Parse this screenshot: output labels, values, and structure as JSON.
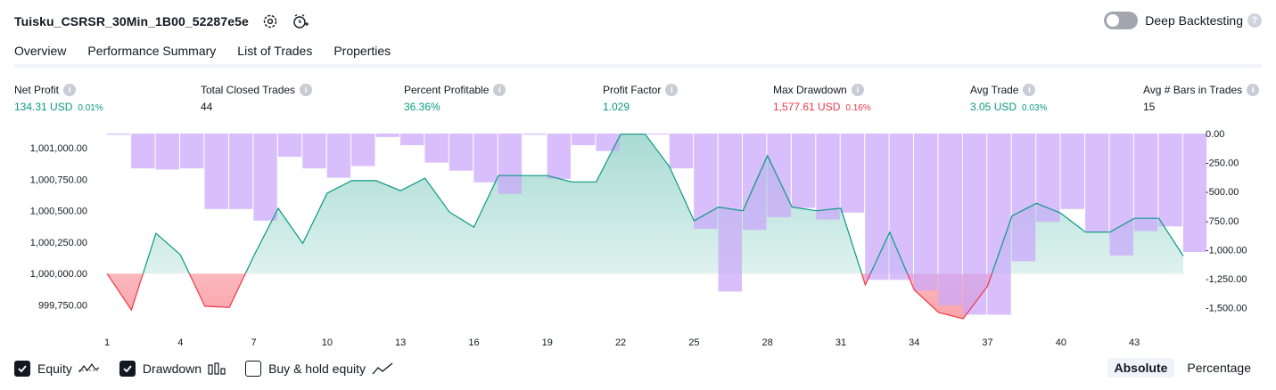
{
  "header": {
    "title": "Tuisku_CSRSR_30Min_1B00_52287e5e",
    "deep_backtesting_label": "Deep Backtesting",
    "help_glyph": "?"
  },
  "tabs": [
    {
      "label": "Overview",
      "active": true
    },
    {
      "label": "Performance Summary",
      "active": false
    },
    {
      "label": "List of Trades",
      "active": false
    },
    {
      "label": "Properties",
      "active": false
    }
  ],
  "metrics": [
    {
      "label": "Net Profit",
      "value": "134.31 USD",
      "pct": "0.01%",
      "color": "green"
    },
    {
      "label": "Total Closed Trades",
      "value": "44",
      "pct": "",
      "color": "dark"
    },
    {
      "label": "Percent Profitable",
      "value": "36.36%",
      "pct": "",
      "color": "green"
    },
    {
      "label": "Profit Factor",
      "value": "1.029",
      "pct": "",
      "color": "green"
    },
    {
      "label": "Max Drawdown",
      "value": "1,577.61 USD",
      "pct": "0.16%",
      "color": "red"
    },
    {
      "label": "Avg Trade",
      "value": "3.05 USD",
      "pct": "0.03%",
      "color": "green"
    },
    {
      "label": "Avg # Bars in Trades",
      "value": "15",
      "pct": "",
      "color": "dark"
    }
  ],
  "legend": {
    "equity": {
      "label": "Equity",
      "checked": true
    },
    "drawdown": {
      "label": "Drawdown",
      "checked": true
    },
    "buy_hold": {
      "label": "Buy & hold equity",
      "checked": false
    }
  },
  "modes": {
    "absolute": "Absolute",
    "percentage": "Percentage",
    "active": "absolute"
  },
  "colors": {
    "profit": "#089981",
    "loss": "#f23645",
    "drawdown_bar": "#c9a6fb",
    "text": "#131722"
  },
  "chart_data": {
    "type": "area",
    "x_ticks": [
      "1",
      "4",
      "7",
      "10",
      "13",
      "16",
      "19",
      "22",
      "25",
      "28",
      "31",
      "34",
      "37",
      "40",
      "43"
    ],
    "left_axis": {
      "ticks": [
        "1,001,000.00",
        "1,000,750.00",
        "1,000,500.00",
        "1,000,250.00",
        "1,000,000.00",
        "999,750.00"
      ],
      "ylim": [
        999640,
        1001115
      ],
      "baseline": 1000000
    },
    "right_axis": {
      "ticks": [
        "0.00",
        "-250.00",
        "-500.00",
        "-750.00",
        "-1,000.00",
        "-1,250.00",
        "-1,500.00"
      ],
      "ylim": [
        0,
        -1595
      ]
    },
    "series": [
      {
        "name": "Equity",
        "x": [
          1,
          2,
          3,
          4,
          5,
          6,
          7,
          8,
          9,
          10,
          11,
          12,
          13,
          14,
          15,
          16,
          17,
          18,
          19,
          20,
          21,
          22,
          23,
          24,
          25,
          26,
          27,
          28,
          29,
          30,
          31,
          32,
          33,
          34,
          35,
          36,
          37,
          38,
          39,
          40,
          41,
          42,
          43,
          44,
          45
        ],
        "values": [
          1000000,
          999710,
          1000320,
          1000150,
          999740,
          999730,
          1000140,
          1000520,
          1000240,
          1000640,
          1000740,
          1000740,
          1000660,
          1000760,
          1000490,
          1000370,
          1000780,
          1000780,
          1000780,
          1000730,
          1000730,
          1001110,
          1001110,
          1000850,
          1000420,
          1000530,
          1000500,
          1000940,
          1000530,
          1000500,
          1000520,
          999910,
          1000330,
          999870,
          999690,
          999640,
          999900,
          1000460,
          1000560,
          1000480,
          1000330,
          1000330,
          1000440,
          1000440,
          1000140
        ]
      },
      {
        "name": "Drawdown",
        "x": [
          1,
          2,
          3,
          4,
          5,
          6,
          7,
          8,
          9,
          10,
          11,
          12,
          13,
          14,
          15,
          16,
          17,
          18,
          19,
          20,
          21,
          22,
          23,
          24,
          25,
          26,
          27,
          28,
          29,
          30,
          31,
          32,
          33,
          34,
          35,
          36,
          37,
          38,
          39,
          40,
          41,
          42,
          43,
          44,
          45
        ],
        "values": [
          -10,
          -300,
          -310,
          -300,
          -650,
          -650,
          -750,
          -200,
          -300,
          -380,
          -280,
          -30,
          -100,
          -250,
          -320,
          -420,
          -520,
          -10,
          -390,
          -100,
          -150,
          0,
          0,
          -300,
          -820,
          -1360,
          -830,
          -720,
          -640,
          -740,
          -680,
          -1260,
          -1260,
          -1350,
          -1480,
          -1560,
          -1560,
          -1100,
          -760,
          -650,
          -850,
          -1050,
          -840,
          -800,
          -1020
        ]
      }
    ]
  }
}
